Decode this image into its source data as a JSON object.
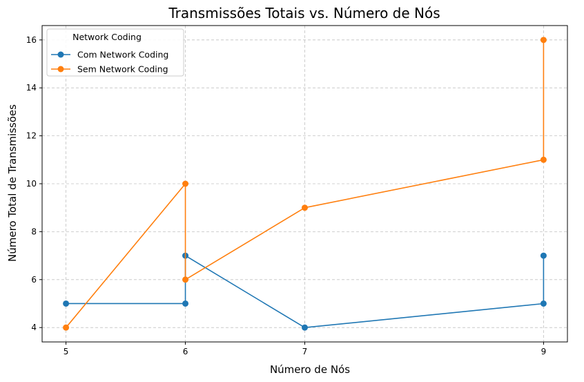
{
  "chart_data": {
    "type": "line",
    "title": "Transmissões Totais vs. Número de Nós",
    "xlabel": "Número de Nós",
    "ylabel": "Número Total de Transmissões",
    "xlim": [
      4.8,
      9.2
    ],
    "ylim": [
      3.4,
      16.6
    ],
    "xticks": [
      5,
      6,
      7,
      9
    ],
    "yticks": [
      4,
      6,
      8,
      10,
      12,
      14,
      16
    ],
    "grid": true,
    "legend": {
      "title": "Network Coding",
      "placement": "top-left"
    },
    "series": [
      {
        "name": "Com Network Coding",
        "color": "#1f77b4",
        "points": [
          [
            5,
            5
          ],
          [
            6,
            5
          ],
          [
            6,
            7
          ],
          [
            7,
            4
          ],
          [
            9,
            5
          ],
          [
            9,
            7
          ]
        ]
      },
      {
        "name": "Sem Network Coding",
        "color": "#ff7f0e",
        "points": [
          [
            5,
            4
          ],
          [
            6,
            10
          ],
          [
            6,
            6
          ],
          [
            7,
            9
          ],
          [
            9,
            11
          ],
          [
            9,
            16
          ]
        ]
      }
    ]
  }
}
